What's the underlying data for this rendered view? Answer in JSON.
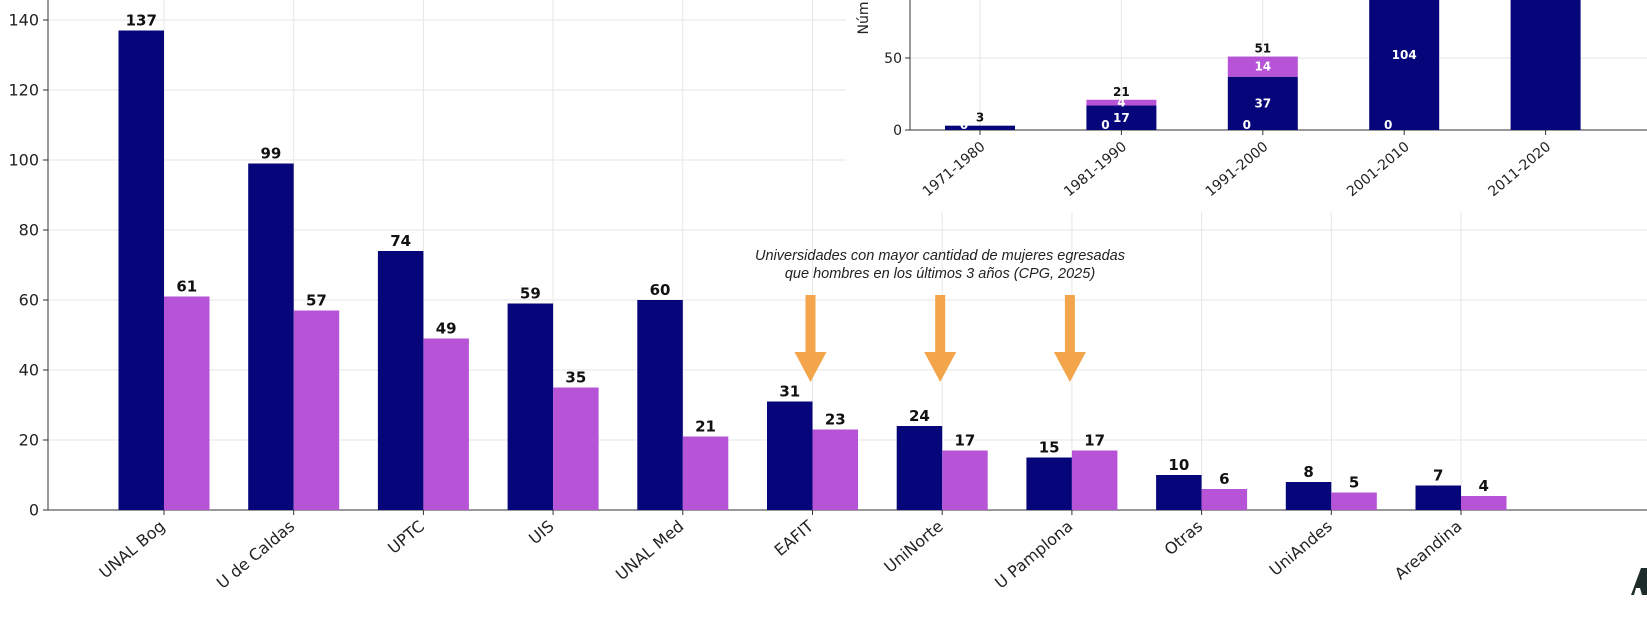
{
  "colors": {
    "men": "#06067a",
    "women": "#b653d6",
    "arrow": "#f2a54a",
    "grid": "#e6e6e6"
  },
  "chart_data": [
    {
      "type": "bar",
      "categories": [
        "UNAL Bog",
        "U de Caldas",
        "UPTC",
        "UIS",
        "UNAL Med",
        "EAFIT",
        "UniNorte",
        "U Pamplona",
        "Otras",
        "UniAndes",
        "Areandina"
      ],
      "series": [
        {
          "values": [
            137,
            99,
            74,
            59,
            60,
            31,
            24,
            15,
            10,
            8,
            7
          ]
        },
        {
          "values": [
            61,
            57,
            49,
            35,
            21,
            23,
            17,
            17,
            6,
            5,
            4
          ]
        }
      ],
      "yticks": [
        0,
        20,
        40,
        60,
        80,
        100,
        120,
        140
      ],
      "ylim": [
        0,
        144
      ],
      "grid": true,
      "annotation": {
        "lines": [
          "Universidades con mayor cantidad de mujeres egresadas",
          "que hombres en los últimos 3 años (CPG, 2025)"
        ],
        "arrow_categories": [
          "EAFIT",
          "UniNorte",
          "U Pamplona"
        ]
      }
    },
    {
      "type": "bar",
      "stacked": true,
      "categories": [
        "1971-1980",
        "1981-1990",
        "1991-2000",
        "2001-2010",
        "2011-2020"
      ],
      "series": [
        {
          "values": [
            3,
            17,
            37,
            104,
            null
          ]
        },
        {
          "values": [
            0,
            4,
            14,
            null,
            null
          ]
        }
      ],
      "totals": [
        3,
        21,
        51,
        null,
        null
      ],
      "base_labels": [
        0,
        0,
        0,
        0,
        null
      ],
      "yticks": [
        0,
        50
      ],
      "ylabel_fragment": "Núm",
      "grid": true
    }
  ]
}
